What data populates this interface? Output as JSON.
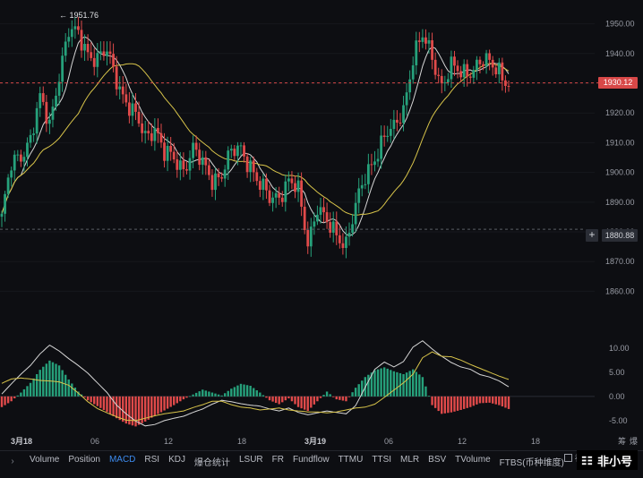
{
  "chart_data": {
    "type": "candlestick",
    "x_ticks": [
      "3月18",
      "06",
      "12",
      "18",
      "3月19",
      "06",
      "12",
      "18"
    ],
    "x_ticks_bold": [
      "3月18",
      "3月19"
    ],
    "price_axis": {
      "ticks": [
        "1950.00",
        "1940.00",
        "1930.00",
        "1920.00",
        "1910.00",
        "1900.00",
        "1890.00",
        "1880.00",
        "1870.00",
        "1860.00"
      ],
      "tick_values": [
        1950,
        1940,
        1930,
        1920,
        1910,
        1900,
        1890,
        1880,
        1870,
        1860
      ],
      "ylim": [
        1852,
        1955
      ]
    },
    "macd_axis": {
      "ticks": [
        "10.00",
        "5.00",
        "0.00",
        "-5.00"
      ],
      "tick_values": [
        10,
        5,
        0,
        -5
      ],
      "ylim": [
        -6.5,
        12
      ]
    },
    "current_price": "1930.12",
    "current_price_value": 1930.12,
    "crosshair_price": "1880.88",
    "crosshair_price_value": 1880.88,
    "high_marker": "1951.76",
    "high_marker_value": 1951.76,
    "colors": {
      "up": "#26a17b",
      "down": "#e04a4a",
      "ma_fast": "#d6d6d6",
      "ma_slow": "#d8c44a",
      "dif": "#d6d6d6",
      "dea": "#d8c44a"
    },
    "ohlc_anchor_closes": [
      1885,
      1902,
      1906,
      1912,
      1924,
      1916,
      1934,
      1947,
      1946,
      1941,
      1938,
      1940,
      1932,
      1924,
      1918,
      1912,
      1916,
      1906,
      1904,
      1902,
      1908,
      1902,
      1898,
      1900,
      1906,
      1908,
      1903,
      1895,
      1891,
      1893,
      1897,
      1893,
      1877,
      1889,
      1882,
      1879,
      1877,
      1888,
      1898,
      1906,
      1912,
      1914,
      1922,
      1939,
      1945,
      1939,
      1930,
      1935,
      1933,
      1935,
      1937,
      1936,
      1935,
      1930
    ],
    "macd_hist": [
      -2.2,
      -1.0,
      0.8,
      2.8,
      5.5,
      7.4,
      6.4,
      3.5,
      1.0,
      -0.8,
      -2.0,
      -3.2,
      -4.5,
      -5.6,
      -6.2,
      -5.2,
      -4.0,
      -2.9,
      -1.8,
      -0.6,
      0.4,
      1.4,
      0.8,
      0.2,
      1.6,
      2.6,
      2.2,
      0.8,
      -0.8,
      -1.6,
      -0.4,
      -2.2,
      -3.0,
      -1.0,
      1.0,
      -0.6,
      -1.0,
      1.8,
      4.0,
      5.4,
      6.0,
      5.2,
      4.6,
      5.6,
      4.0,
      -1.8,
      -3.6,
      -3.3,
      -2.8,
      -2.2,
      -1.4,
      -1.3,
      -1.8,
      -2.6
    ],
    "macd_dif": [
      0.5,
      2.6,
      4.6,
      6.4,
      8.8,
      10.6,
      9.4,
      7.8,
      6.4,
      4.8,
      2.8,
      0.8,
      -1.8,
      -3.6,
      -5.1,
      -6.1,
      -5.8,
      -5.0,
      -4.5,
      -4.1,
      -3.3,
      -2.6,
      -1.6,
      -0.8,
      -1.1,
      -1.5,
      -1.8,
      -2.0,
      -2.6,
      -3.0,
      -2.4,
      -3.3,
      -3.8,
      -3.4,
      -3.0,
      -3.3,
      -3.6,
      -1.9,
      1.9,
      5.6,
      7.1,
      6.1,
      7.2,
      10.2,
      11.5,
      9.8,
      8.3,
      7.0,
      6.1,
      5.6,
      4.5,
      4.0,
      3.2,
      2.0
    ],
    "macd_dea": [
      2.7,
      3.6,
      3.8,
      3.6,
      3.3,
      3.2,
      3.0,
      2.3,
      0.7,
      -1.1,
      -2.5,
      -3.4,
      -4.2,
      -4.9,
      -5.0,
      -4.5,
      -4.0,
      -3.6,
      -3.3,
      -3.0,
      -2.3,
      -1.7,
      -1.0,
      -1.0,
      -1.7,
      -2.2,
      -2.4,
      -2.8,
      -2.6,
      -2.4,
      -2.8,
      -3.0,
      -3.2,
      -3.2,
      -3.4,
      -3.2,
      -2.8,
      -2.4,
      -2.2,
      -1.6,
      -0.2,
      1.3,
      2.8,
      4.6,
      8.0,
      9.2,
      8.3,
      8.2,
      7.5,
      6.6,
      5.8,
      5.0,
      4.2,
      3.5
    ]
  },
  "toolbar": {
    "indicators": [
      "Volume",
      "Position",
      "MACD",
      "RSI",
      "KDJ",
      "爆仓统计",
      "LSUR",
      "FR",
      "Fundflow",
      "TTMU",
      "TTSI",
      "MLR",
      "BSV",
      "TVolume",
      "FTBS(币种维度)"
    ],
    "active": "MACD",
    "community": "社区",
    "watermark_text": "非小号"
  },
  "corner_labels": {
    "top": "筹",
    "bottom": "爆"
  }
}
